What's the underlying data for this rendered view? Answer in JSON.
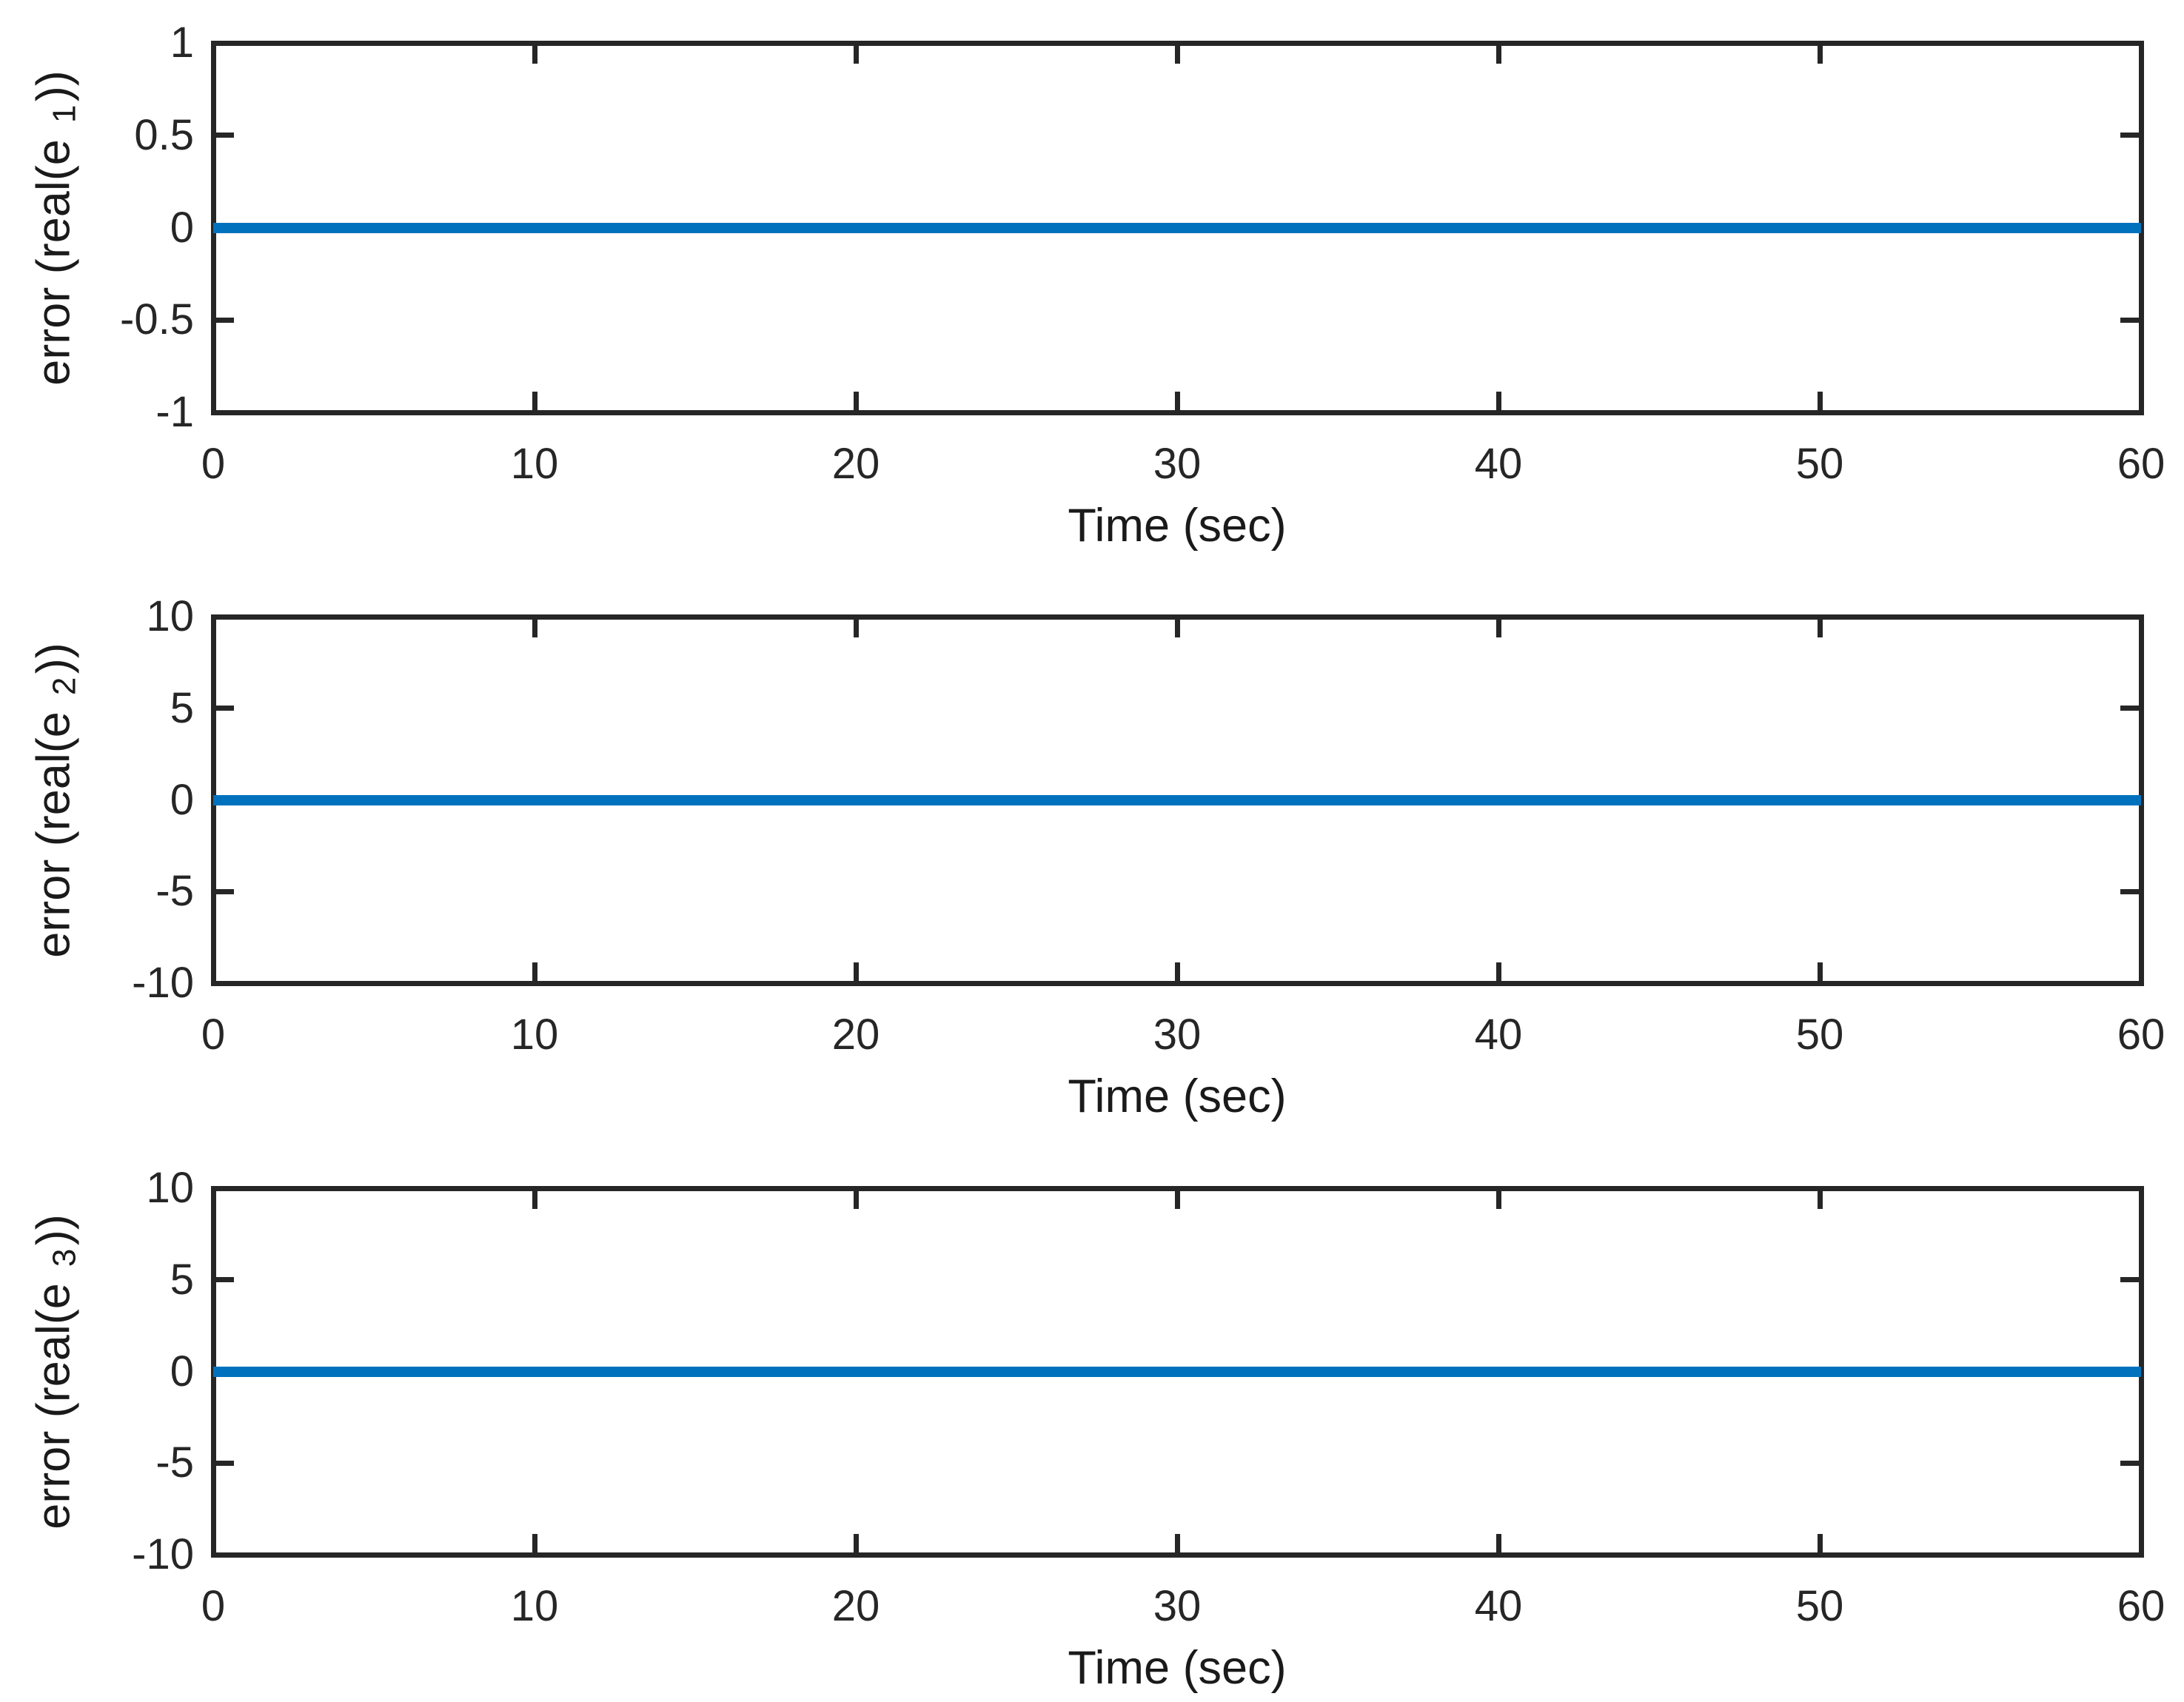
{
  "figure": {
    "background": "#ffffff"
  },
  "colors": {
    "axis": "#262626",
    "label_text": "#1a1a1a",
    "line": "#0072BD"
  },
  "chart_data": [
    {
      "type": "line",
      "title": "",
      "xlabel": "Time (sec)",
      "ylabel_prefix": "error (real(e",
      "ylabel_subscript": "1",
      "ylabel_suffix": "))",
      "xlim": [
        0,
        60
      ],
      "ylim": [
        -1,
        1
      ],
      "xticks": [
        0,
        10,
        20,
        30,
        40,
        50,
        60
      ],
      "xtick_labels": [
        "0",
        "10",
        "20",
        "30",
        "40",
        "50",
        "60"
      ],
      "yticks": [
        1,
        0.5,
        0,
        -0.5,
        -1
      ],
      "ytick_labels": [
        "1",
        "0.5",
        "0",
        "-0.5",
        "-1"
      ],
      "grid": false,
      "box": true,
      "legend": null,
      "series": [
        {
          "name": "error real(e1)",
          "x": [
            0,
            60
          ],
          "y": [
            0,
            0
          ],
          "color": "#0072BD"
        }
      ]
    },
    {
      "type": "line",
      "title": "",
      "xlabel": "Time (sec)",
      "ylabel_prefix": "error (real(e",
      "ylabel_subscript": "2",
      "ylabel_suffix": "))",
      "xlim": [
        0,
        60
      ],
      "ylim": [
        -10,
        10
      ],
      "xticks": [
        0,
        10,
        20,
        30,
        40,
        50,
        60
      ],
      "xtick_labels": [
        "0",
        "10",
        "20",
        "30",
        "40",
        "50",
        "60"
      ],
      "yticks": [
        10,
        5,
        0,
        -5,
        -10
      ],
      "ytick_labels": [
        "10",
        "5",
        "0",
        "-5",
        "-10"
      ],
      "grid": false,
      "box": true,
      "legend": null,
      "series": [
        {
          "name": "error real(e2)",
          "x": [
            0,
            60
          ],
          "y": [
            0,
            0
          ],
          "color": "#0072BD"
        }
      ]
    },
    {
      "type": "line",
      "title": "",
      "xlabel": "Time (sec)",
      "ylabel_prefix": "error (real(e",
      "ylabel_subscript": "3",
      "ylabel_suffix": "))",
      "xlim": [
        0,
        60
      ],
      "ylim": [
        -10,
        10
      ],
      "xticks": [
        0,
        10,
        20,
        30,
        40,
        50,
        60
      ],
      "xtick_labels": [
        "0",
        "10",
        "20",
        "30",
        "40",
        "50",
        "60"
      ],
      "yticks": [
        10,
        5,
        0,
        -5,
        -10
      ],
      "ytick_labels": [
        "10",
        "5",
        "0",
        "-5",
        "-10"
      ],
      "grid": false,
      "box": true,
      "legend": null,
      "series": [
        {
          "name": "error real(e3)",
          "x": [
            0,
            60
          ],
          "y": [
            0,
            0
          ],
          "color": "#0072BD"
        }
      ]
    }
  ]
}
